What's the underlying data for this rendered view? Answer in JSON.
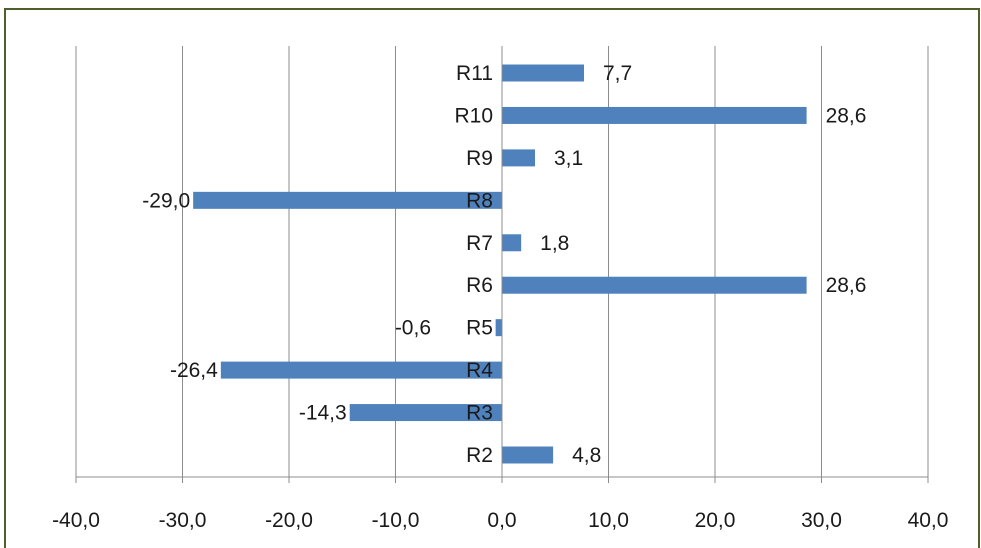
{
  "chart_data": {
    "type": "bar",
    "orientation": "horizontal",
    "categories": [
      "R2",
      "R3",
      "R4",
      "R5",
      "R6",
      "R7",
      "R8",
      "R9",
      "R10",
      "R11"
    ],
    "values": [
      4.8,
      -14.3,
      -26.4,
      -0.6,
      28.6,
      1.8,
      -29.0,
      3.1,
      28.6,
      7.7
    ],
    "data_labels": [
      "4,8",
      "-14,3",
      "-26,4",
      "-0,6",
      "28,6",
      "1,8",
      "-29,0",
      "3,1",
      "28,6",
      "7,7"
    ],
    "x_ticks": [
      -40,
      -30,
      -20,
      -10,
      0,
      10,
      20,
      30,
      40
    ],
    "x_tick_labels": [
      "-40,0",
      "-30,0",
      "-20,0",
      "-10,0",
      "0,0",
      "10,0",
      "20,0",
      "30,0",
      "40,0"
    ],
    "xlim": [
      -40,
      40
    ],
    "grid": "vertical",
    "legend": "none",
    "bar_color": "#4f81bd",
    "frame_color": "#4f5f2c",
    "title": "",
    "xlabel": "",
    "ylabel": ""
  }
}
